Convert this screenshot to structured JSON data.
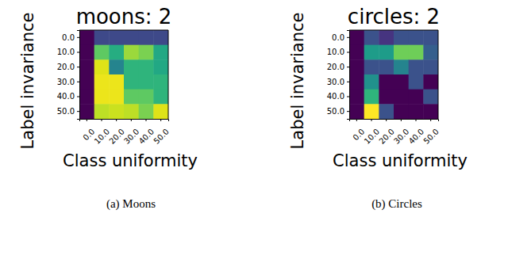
{
  "chart_data": [
    {
      "type": "heatmap",
      "title": "moons: 2",
      "x_label": "Class uniformity",
      "y_label": "Label invariance",
      "caption": "(a) Moons",
      "categories": [
        "0.0",
        "10.0",
        "20.0",
        "30.0",
        "40.0",
        "50.0"
      ],
      "y_categories": [
        "0.0",
        "10.0",
        "20.0",
        "30.0",
        "40.0",
        "50.0"
      ],
      "zlim": [
        0,
        1
      ],
      "cells": [
        [
          0.0,
          0.22,
          0.22,
          0.22,
          0.22,
          0.22
        ],
        [
          0.0,
          0.75,
          0.62,
          0.85,
          0.8,
          0.6
        ],
        [
          0.0,
          0.95,
          0.45,
          0.65,
          0.65,
          0.6
        ],
        [
          0.0,
          0.97,
          0.97,
          0.65,
          0.65,
          0.65
        ],
        [
          0.0,
          0.97,
          0.97,
          0.75,
          0.75,
          0.65
        ],
        [
          0.0,
          0.9,
          0.92,
          0.9,
          0.8,
          0.95
        ]
      ]
    },
    {
      "type": "heatmap",
      "title": "circles: 2",
      "x_label": "Class uniformity",
      "y_label": "Label invariance",
      "caption": "(b) Circles",
      "categories": [
        "0.0",
        "10.0",
        "20.0",
        "30.0",
        "40.0",
        "50.0"
      ],
      "y_categories": [
        "0.0",
        "10.0",
        "20.0",
        "30.0",
        "40.0",
        "50.0"
      ],
      "zlim": [
        0,
        1
      ],
      "cells": [
        [
          0.0,
          0.25,
          0.15,
          0.25,
          0.25,
          0.25
        ],
        [
          0.0,
          0.55,
          0.55,
          0.78,
          0.78,
          0.3
        ],
        [
          0.0,
          0.25,
          0.25,
          0.45,
          0.25,
          0.25
        ],
        [
          0.0,
          0.5,
          0.0,
          0.0,
          0.25,
          0.0
        ],
        [
          0.0,
          0.65,
          0.0,
          0.0,
          0.0,
          0.25
        ],
        [
          0.0,
          1.0,
          0.25,
          0.0,
          0.0,
          0.0
        ]
      ]
    }
  ]
}
